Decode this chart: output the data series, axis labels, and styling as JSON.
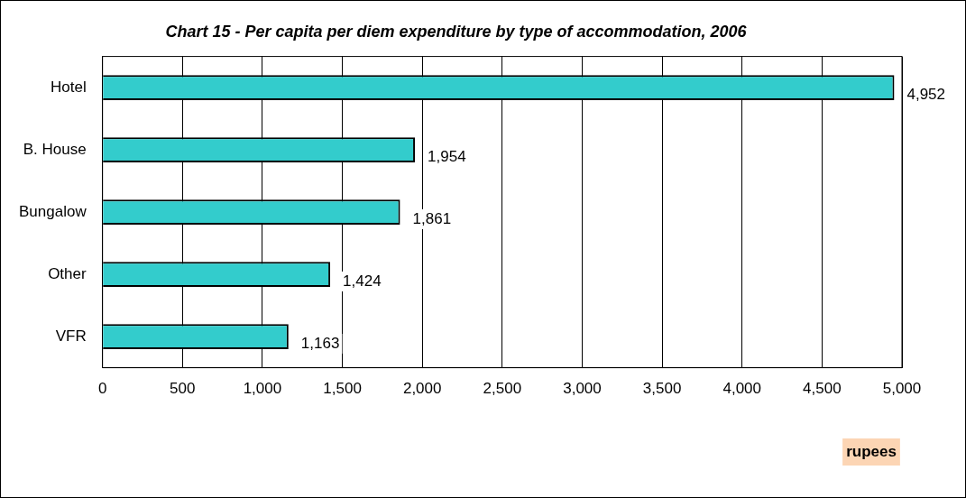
{
  "chart_data": {
    "type": "bar",
    "orientation": "horizontal",
    "title": "Chart 15 - Per capita per diem expenditure by type of accommodation, 2006",
    "xlabel": "rupees",
    "categories": [
      "Hotel",
      "B. House",
      "Bungalow",
      "Other",
      "VFR"
    ],
    "values": [
      4952,
      1954,
      1861,
      1424,
      1163
    ],
    "color": "#33cccc",
    "value_labels": [
      "4,952",
      "1,954",
      "1,861",
      "1,424",
      "1,163"
    ],
    "xlim": [
      0,
      5000
    ],
    "xticks": [
      0,
      500,
      {
        "value": 1000,
        "label": "1,000"
      },
      {
        "value": 1500,
        "label": "1,500"
      },
      {
        "value": 2000,
        "label": "2,000"
      },
      {
        "value": 2500,
        "label": "2,500"
      },
      {
        "value": 3000,
        "label": "3,000"
      },
      {
        "value": 3500,
        "label": "3,500"
      },
      {
        "value": 4000,
        "label": "4,000"
      },
      {
        "value": 4500,
        "label": "4,500"
      },
      {
        "value": 5000,
        "label": "5,000"
      }
    ],
    "grid": "x",
    "legend": false
  }
}
